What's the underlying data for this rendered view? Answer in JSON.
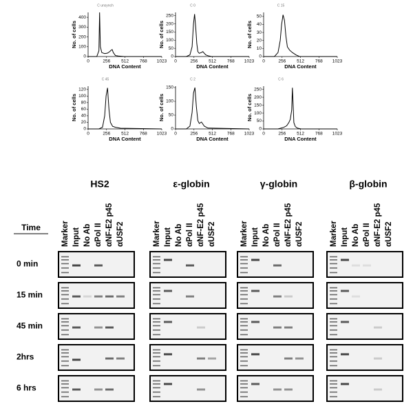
{
  "chart_data": [
    {
      "type": "line",
      "title": "C unsynch",
      "x_label": "DNA Content",
      "y_label": "No. of cells",
      "x": [
        0,
        120,
        150,
        160,
        170,
        190,
        230,
        270,
        300,
        320,
        335,
        350,
        380,
        420,
        500,
        1023
      ],
      "values": [
        0,
        0,
        60,
        450,
        100,
        40,
        30,
        35,
        50,
        65,
        70,
        40,
        10,
        5,
        0,
        0
      ],
      "xlim": [
        0,
        1023
      ],
      "xticks": [
        0,
        256,
        512,
        768,
        1023
      ],
      "ylim": [
        0,
        450
      ],
      "yticks": [
        0,
        100,
        200,
        300,
        400
      ],
      "color": "#000000"
    },
    {
      "type": "line",
      "title": "C 0",
      "x_label": "DNA Content",
      "y_label": "No. of cells",
      "x": [
        0,
        150,
        200,
        230,
        250,
        265,
        280,
        295,
        310,
        330,
        360,
        380,
        400,
        420,
        450,
        500,
        1023
      ],
      "values": [
        0,
        0,
        10,
        60,
        200,
        260,
        180,
        80,
        30,
        20,
        25,
        30,
        20,
        10,
        5,
        0,
        0
      ],
      "xlim": [
        0,
        1023
      ],
      "xticks": [
        0,
        256,
        512,
        768,
        1023
      ],
      "ylim": [
        0,
        270
      ],
      "yticks": [
        0,
        50,
        100,
        150,
        200,
        250
      ],
      "color": "#000000"
    },
    {
      "type": "line",
      "title": "C 15",
      "x_label": "DNA Content",
      "y_label": "No. of cells",
      "x": [
        0,
        150,
        200,
        230,
        250,
        270,
        290,
        310,
        330,
        360,
        400,
        450,
        500,
        1023
      ],
      "values": [
        0,
        0,
        5,
        20,
        40,
        52,
        45,
        25,
        12,
        8,
        5,
        2,
        0,
        0
      ],
      "xlim": [
        0,
        1023
      ],
      "xticks": [
        0,
        256,
        512,
        768,
        1023
      ],
      "ylim": [
        0,
        55
      ],
      "yticks": [
        0,
        10,
        20,
        30,
        40,
        50
      ],
      "color": "#000000"
    },
    {
      "type": "line",
      "title": "C 45",
      "x_label": "DNA Content",
      "y_label": "No. of cells",
      "x": [
        0,
        150,
        200,
        230,
        250,
        270,
        290,
        310,
        340,
        380,
        450,
        1023
      ],
      "values": [
        0,
        0,
        5,
        40,
        100,
        125,
        60,
        20,
        8,
        5,
        2,
        0
      ],
      "xlim": [
        0,
        1023
      ],
      "xticks": [
        0,
        256,
        512,
        768,
        1023
      ],
      "ylim": [
        0,
        130
      ],
      "yticks": [
        0,
        20,
        40,
        60,
        80,
        100,
        120
      ],
      "color": "#000000"
    },
    {
      "type": "line",
      "title": "C 2",
      "x_label": "DNA Content",
      "y_label": "No. of cells",
      "x": [
        0,
        150,
        200,
        230,
        250,
        270,
        290,
        310,
        330,
        360,
        400,
        450,
        1023
      ],
      "values": [
        0,
        0,
        10,
        60,
        130,
        150,
        80,
        30,
        20,
        25,
        10,
        3,
        0
      ],
      "xlim": [
        0,
        1023
      ],
      "xticks": [
        0,
        256,
        512,
        768,
        1023
      ],
      "ylim": [
        0,
        155
      ],
      "yticks": [
        0,
        50,
        100,
        150
      ],
      "color": "#000000"
    },
    {
      "type": "line",
      "title": "C 6",
      "x_label": "DNA Content",
      "y_label": "No. of cells",
      "x": [
        0,
        200,
        280,
        320,
        350,
        370,
        390,
        400,
        410,
        420,
        440,
        470,
        520,
        1023
      ],
      "values": [
        0,
        0,
        10,
        20,
        40,
        60,
        120,
        260,
        150,
        40,
        15,
        5,
        0,
        0
      ],
      "xlim": [
        0,
        1023
      ],
      "xticks": [
        0,
        256,
        512,
        768,
        1023
      ],
      "ylim": [
        0,
        270
      ],
      "yticks": [
        0,
        50,
        100,
        150,
        200,
        250
      ],
      "color": "#000000"
    }
  ],
  "gel": {
    "time_header": "Time",
    "times": [
      "0 min",
      "15 min",
      "45 min",
      "2hrs",
      "6 hrs"
    ],
    "genes": [
      "HS2",
      "ε-globin",
      "γ-globin",
      "β-globin"
    ],
    "lanes": [
      "Marker",
      "Input",
      "No Ab",
      "αPol II",
      "αNF-E2 p45",
      "αUSF2"
    ]
  }
}
